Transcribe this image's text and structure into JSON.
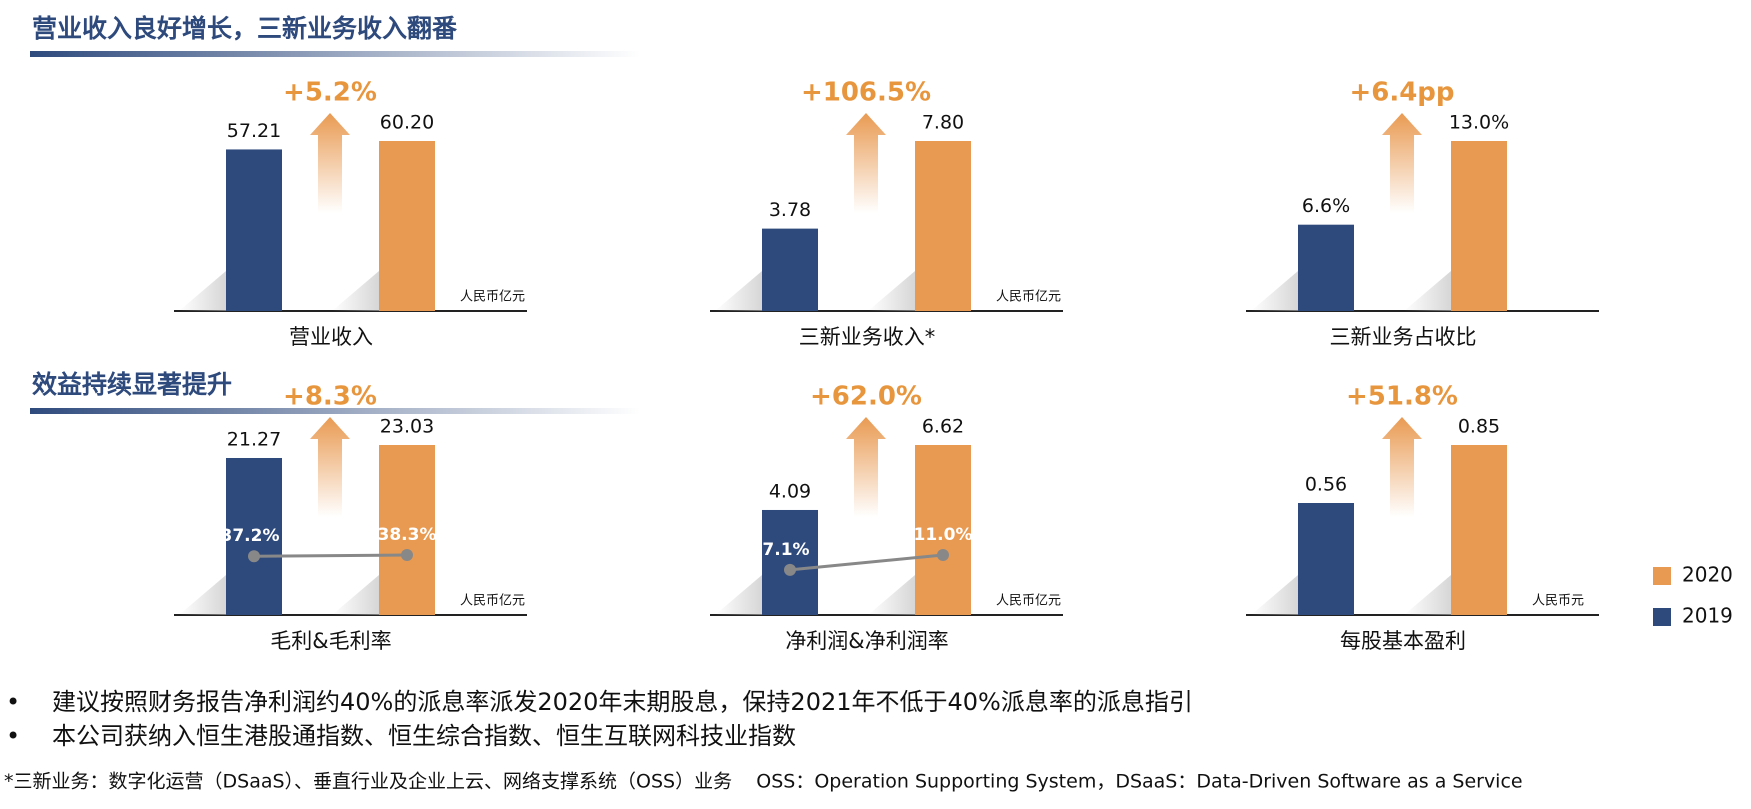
{
  "sections": [
    {
      "title": "营业收入良好增长，三新业务收入翻番"
    },
    {
      "title": "效益持续显著提升"
    }
  ],
  "legend": [
    {
      "name": "2020",
      "color": "#e99a52"
    },
    {
      "name": "2019",
      "color": "#2e4a7d"
    }
  ],
  "chart_data": [
    {
      "type": "bar",
      "title": "营业收入",
      "unit_label": "人民币亿元",
      "annotation": "+5.2%",
      "values": [
        57.21,
        60.2
      ],
      "value_labels": [
        "57.21",
        "60.20"
      ]
    },
    {
      "type": "bar",
      "title": "三新业务收入*",
      "unit_label": "人民币亿元",
      "annotation": "+106.5%",
      "values": [
        3.78,
        7.8
      ],
      "value_labels": [
        "3.78",
        "7.80"
      ]
    },
    {
      "type": "bar",
      "title": "三新业务占收比",
      "unit_label": "",
      "annotation": "+6.4pp",
      "values": [
        6.6,
        13.0
      ],
      "value_labels": [
        "6.6%",
        "13.0%"
      ]
    },
    {
      "type": "bar",
      "title": "毛利&毛利率",
      "unit_label": "人民币亿元",
      "annotation": "+8.3%",
      "values": [
        21.27,
        23.03
      ],
      "line_values": [
        37.2,
        38.3
      ],
      "line_labels": [
        "37.2%",
        "38.3%"
      ]
    },
    {
      "type": "bar",
      "title": "净利润&净利润率",
      "unit_label": "人民币亿元",
      "annotation": "+62.0%",
      "values": [
        4.09,
        6.62
      ],
      "line_values": [
        7.1,
        11.0
      ],
      "line_labels": [
        "7.1%",
        "11.0%"
      ]
    },
    {
      "type": "bar",
      "title": "每股基本盈利",
      "unit_label": "人民币元",
      "annotation": "+51.8%",
      "values": [
        0.56,
        0.85
      ]
    }
  ],
  "bullets": [
    "建议按照财务报告净利润约40%的派息率派发2020年末期股息，保持2021年不低于40%派息率的派息指引",
    "本公司获纳入恒生港股通指数、恒生综合指数、恒生互联网科技业指数"
  ],
  "footnote": "*三新业务：数字化运营（DSaaS）、垂直行业及企业上云、网络支撑系统（OSS）业务    OSS：Operation Supporting System，DSaaS：Data-Driven Software as a Service"
}
